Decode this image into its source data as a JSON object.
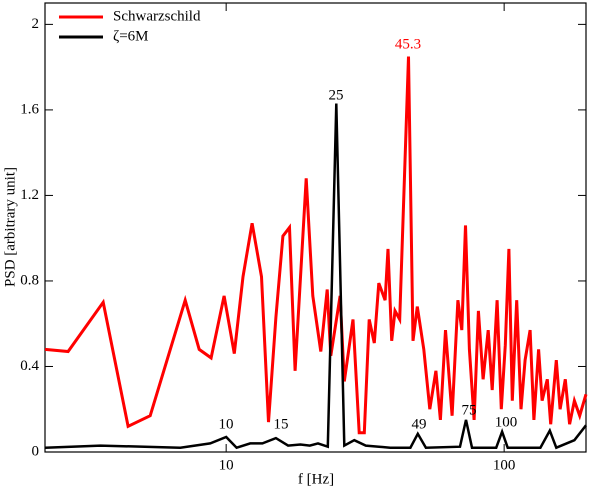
{
  "chart_data": {
    "type": "line",
    "xscale": "log",
    "x_label": "f [Hz]",
    "y_label": "PSD [arbitrary unit]",
    "xlim": [
      2.23,
      197
    ],
    "ylim": [
      0,
      2.1
    ],
    "xticks": [
      10,
      100
    ],
    "yticks": [
      0,
      0.4,
      0.8,
      1.2,
      1.6,
      2
    ],
    "legend": "upper left",
    "series": [
      {
        "name": "Schwarzschild",
        "color": "#ff0000",
        "x": [
          2.23,
          2.7,
          3.61,
          4.44,
          5.33,
          7.12,
          8.0,
          8.83,
          9.83,
          10.7,
          11.5,
          12.4,
          13.4,
          14.2,
          15.1,
          16.0,
          16.9,
          17.7,
          19.4,
          20.5,
          21.9,
          23.1,
          23.8,
          25.7,
          26.6,
          28.6,
          30.1,
          31.4,
          32.7,
          34.1,
          35.4,
          37.3,
          38.2,
          39.4,
          40.5,
          42.1,
          45.3,
          47.0,
          48.7,
          51.4,
          54.0,
          56.8,
          59.0,
          61.5,
          65.0,
          68.2,
          70.4,
          72.6,
          75.0,
          78.0,
          80.8,
          84.0,
          87.6,
          90.6,
          94.3,
          97.7,
          101,
          104,
          107,
          111,
          115,
          119,
          124,
          128,
          133,
          137,
          143,
          147,
          154,
          159,
          166,
          172,
          179,
          187,
          197
        ],
        "values": [
          0.48,
          0.47,
          0.7,
          0.12,
          0.17,
          0.71,
          0.48,
          0.44,
          0.73,
          0.46,
          0.82,
          1.07,
          0.82,
          0.14,
          0.63,
          1.01,
          1.05,
          0.38,
          1.28,
          0.73,
          0.47,
          0.76,
          0.45,
          0.73,
          0.33,
          0.62,
          0.09,
          0.09,
          0.62,
          0.51,
          0.79,
          0.71,
          0.95,
          0.52,
          0.66,
          0.62,
          1.85,
          0.52,
          0.68,
          0.48,
          0.2,
          0.38,
          0.15,
          0.57,
          0.17,
          0.71,
          0.57,
          1.06,
          0.48,
          0.15,
          0.66,
          0.34,
          0.57,
          0.29,
          0.71,
          0.2,
          0.5,
          0.95,
          0.24,
          0.71,
          0.2,
          0.43,
          0.57,
          0.15,
          0.48,
          0.24,
          0.34,
          0.13,
          0.43,
          0.2,
          0.34,
          0.13,
          0.24,
          0.17,
          0.27
        ]
      },
      {
        "name": "ζ=6M",
        "color": "#000000",
        "x": [
          2.23,
          3.53,
          6.84,
          8.76,
          10,
          10.9,
          12.2,
          13.5,
          15.1,
          16.7,
          18.5,
          20.0,
          21.4,
          23.2,
          24.9,
          26.6,
          28.9,
          31.8,
          38.9,
          46,
          48.9,
          52.3,
          69.4,
          72.9,
          76.6,
          93.6,
          98.3,
          103,
          135,
          146,
          154,
          179,
          197
        ],
        "values": [
          0.02,
          0.03,
          0.02,
          0.04,
          0.07,
          0.02,
          0.04,
          0.04,
          0.065,
          0.03,
          0.035,
          0.03,
          0.04,
          0.025,
          1.63,
          0.03,
          0.055,
          0.03,
          0.02,
          0.02,
          0.085,
          0.02,
          0.025,
          0.15,
          0.02,
          0.02,
          0.095,
          0.02,
          0.02,
          0.1,
          0.02,
          0.055,
          0.125
        ]
      }
    ],
    "annotations": [
      {
        "text": "45.3",
        "color": "#ff0000"
      },
      {
        "text": "25",
        "color": "#000000"
      },
      {
        "text": "10",
        "color": "#000000"
      },
      {
        "text": "15",
        "color": "#000000"
      },
      {
        "text": "49",
        "color": "#000000"
      },
      {
        "text": "75",
        "color": "#000000"
      },
      {
        "text": "100",
        "color": "#000000"
      }
    ]
  }
}
